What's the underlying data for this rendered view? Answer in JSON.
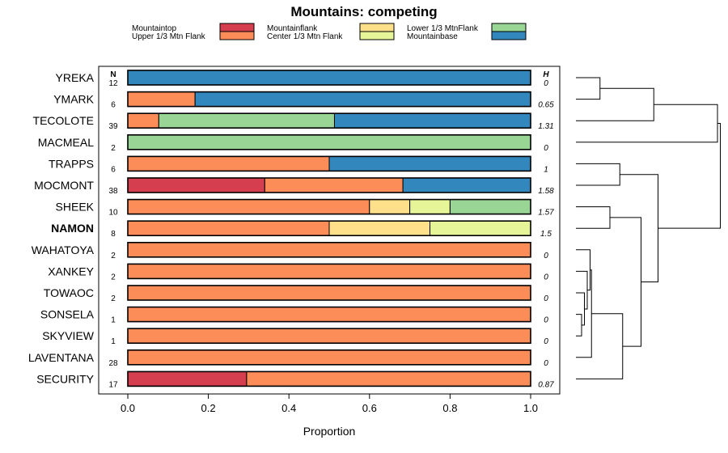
{
  "chart_data": {
    "type": "bar",
    "orientation": "horizontal",
    "stacked": true,
    "title": "Mountains: competing",
    "xlabel": "Proportion",
    "xlim": [
      0,
      1
    ],
    "xticks": [
      "0.0",
      "0.2",
      "0.4",
      "0.6",
      "0.8",
      "1.0"
    ],
    "n_header": "N",
    "h_header": "H",
    "categories": [
      "YREKA",
      "YMARK",
      "TECOLOTE",
      "MACMEAL",
      "TRAPPS",
      "MOCMONT",
      "SHEEK",
      "NAMON",
      "WAHATOYA",
      "XANKEY",
      "TOWAOC",
      "SONSELA",
      "SKYVIEW",
      "LAVENTANA",
      "SECURITY"
    ],
    "highlighted": [
      "NAMON"
    ],
    "n_values": [
      "12",
      "6",
      "39",
      "2",
      "6",
      "38",
      "10",
      "8",
      "2",
      "2",
      "2",
      "1",
      "1",
      "28",
      "17"
    ],
    "h_values": [
      "0",
      "0.65",
      "1.31",
      "0",
      "1",
      "1.58",
      "1.57",
      "1.5",
      "0",
      "0",
      "0",
      "0",
      "0",
      "0",
      "0.87"
    ],
    "series": [
      {
        "name": "Mountaintop",
        "color": "#d53e4f",
        "values": [
          0,
          0,
          0,
          0,
          0,
          0.34,
          0,
          0,
          0,
          0,
          0,
          0,
          0,
          0,
          0.295
        ]
      },
      {
        "name": "Upper 1/3 Mtn Flank",
        "color": "#fc8d59",
        "values": [
          0,
          0.167,
          0.077,
          0,
          0.5,
          0.343,
          0.6,
          0.5,
          1,
          1,
          1,
          1,
          1,
          1,
          0.705
        ]
      },
      {
        "name": "Mountainflank",
        "color": "#fee08b",
        "values": [
          0,
          0,
          0,
          0,
          0,
          0,
          0.1,
          0.25,
          0,
          0,
          0,
          0,
          0,
          0,
          0
        ]
      },
      {
        "name": "Center 1/3 Mtn Flank",
        "color": "#e6f598",
        "values": [
          0,
          0,
          0,
          0,
          0,
          0,
          0.1,
          0.25,
          0,
          0,
          0,
          0,
          0,
          0,
          0
        ]
      },
      {
        "name": "Lower 1/3 MtnFlank",
        "color": "#99d594",
        "values": [
          0,
          0,
          0.436,
          1,
          0,
          0,
          0.2,
          0,
          0,
          0,
          0,
          0,
          0,
          0,
          0
        ]
      },
      {
        "name": "Mountainbase",
        "color": "#3288bd",
        "values": [
          1,
          0.833,
          0.487,
          0,
          0.5,
          0.317,
          0,
          0,
          0,
          0,
          0,
          0,
          0,
          0,
          0
        ]
      }
    ],
    "dendrogram": {
      "description": "hierarchical clustering of rows; merge heights in tree-distance units",
      "merges": [
        {
          "a": "YREKA",
          "b": "YMARK",
          "height": 0.17
        },
        {
          "a": "m0",
          "b": "TECOLOTE",
          "height": 0.55
        },
        {
          "a": "m1",
          "b": "MACMEAL",
          "height": 1.0
        },
        {
          "a": "TRAPPS",
          "b": "MOCMONT",
          "height": 0.31
        },
        {
          "a": "SHEEK",
          "b": "NAMON",
          "height": 0.24
        },
        {
          "a": "SONSELA",
          "b": "SKYVIEW",
          "height": 0.04
        },
        {
          "a": "m5",
          "b": "TOWAOC",
          "height": 0.06
        },
        {
          "a": "XANKEY",
          "b": "m6",
          "height": 0.08
        },
        {
          "a": "WAHATOYA",
          "b": "m7",
          "height": 0.1
        },
        {
          "a": "m8",
          "b": "LAVENTANA",
          "height": 0.11
        },
        {
          "a": "m9",
          "b": "SECURITY",
          "height": 0.33
        },
        {
          "a": "m4",
          "b": "m10",
          "height": 0.46
        },
        {
          "a": "m3",
          "b": "m11",
          "height": 0.58
        },
        {
          "a": "m2",
          "b": "m12",
          "height": 1.02
        }
      ]
    }
  }
}
